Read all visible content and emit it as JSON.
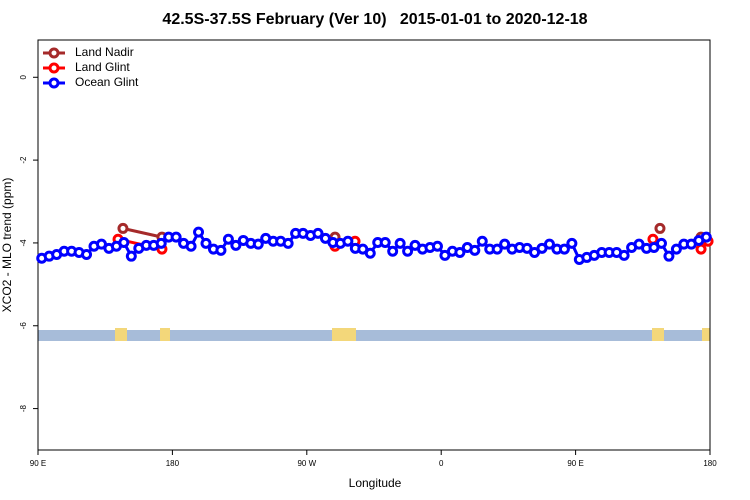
{
  "chart_data": {
    "type": "line",
    "title": "42.5S-37.5S February (Ver 10)   2015-01-01 to 2020-12-18",
    "x_label": "Longitude",
    "y_label": "XCO2 - MLO trend (ppm)",
    "xlim": [
      90,
      540
    ],
    "ylim": [
      -9,
      0.9
    ],
    "xticks": [
      {
        "value": 90,
        "label": "90 E"
      },
      180,
      {
        "value": 270,
        "label": "90 W"
      },
      {
        "value": 360,
        "label": "0"
      },
      {
        "value": 450,
        "label": "90 E"
      },
      {
        "value": 540,
        "label": "180"
      }
    ],
    "yticks": [
      0,
      -2,
      -4,
      -6,
      -8
    ],
    "legend": "top-left",
    "series": [
      {
        "name": "Land Nadir",
        "color": "#a52a2a",
        "x": [
          146.9,
          173,
          null,
          288.9,
          null,
          506.5,
          null,
          534
        ],
        "values": [
          -3.65,
          -3.86,
          null,
          -3.86,
          null,
          -3.65,
          null,
          -3.86
        ]
      },
      {
        "name": "Land Glint",
        "color": "#ff0000",
        "x": [
          143.6,
          173,
          null,
          288.9,
          302.3,
          null,
          501.8,
          null,
          534,
          538.7
        ],
        "values": [
          -3.91,
          -4.15,
          null,
          -4.08,
          -3.96,
          null,
          -3.91,
          null,
          -4.15,
          -3.96
        ]
      },
      {
        "name": "Ocean Glint",
        "color": "#0000ff",
        "x": [
          92.5,
          97.5,
          102.5,
          107.5,
          112.5,
          117.5,
          122.5,
          127.5,
          132.5,
          137.5,
          142.5,
          147.5,
          152.5,
          157.5,
          162.5,
          167.5,
          172.5,
          177.5,
          182.5,
          187.5,
          192.5,
          197.5,
          202.5,
          207.5,
          212.5,
          217.5,
          222.5,
          227.5,
          232.5,
          237.5,
          242.5,
          247.5,
          252.5,
          257.5,
          262.5,
          267.5,
          272.5,
          277.5,
          282.5,
          287.5,
          292.5,
          297.5,
          302.5,
          307.5,
          312.5,
          317.5,
          322.5,
          327.5,
          332.5,
          337.5,
          342.5,
          347.5,
          352.5,
          357.5,
          362.5,
          367.5,
          372.5,
          377.5,
          382.5,
          387.5,
          392.5,
          397.5,
          402.5,
          407.5,
          412.5,
          417.5,
          422.5,
          427.5,
          432.5,
          437.5,
          442.5,
          447.5,
          452.5,
          457.5,
          462.5,
          467.5,
          472.5,
          477.5,
          482.5,
          487.5,
          492.5,
          497.5,
          502.5,
          507.5,
          512.5,
          517.5,
          522.5,
          527.5,
          532.5,
          537.5
        ],
        "values": [
          -4.37,
          -4.32,
          -4.28,
          -4.2,
          -4.2,
          -4.23,
          -4.28,
          -4.08,
          -4.03,
          -4.13,
          -4.08,
          -3.99,
          -4.32,
          -4.13,
          -4.06,
          -4.06,
          -4.01,
          -3.86,
          -3.86,
          -4.01,
          -4.08,
          -3.74,
          -4.01,
          -4.15,
          -4.18,
          -3.91,
          -4.06,
          -3.94,
          -4.01,
          -4.03,
          -3.89,
          -3.96,
          -3.96,
          -4.01,
          -3.77,
          -3.77,
          -3.82,
          -3.77,
          -3.89,
          -3.99,
          -4.01,
          -3.96,
          -4.13,
          -4.15,
          -4.25,
          -3.99,
          -3.99,
          -4.2,
          -4.01,
          -4.2,
          -4.06,
          -4.15,
          -4.11,
          -4.08,
          -4.3,
          -4.2,
          -4.23,
          -4.11,
          -4.18,
          -3.96,
          -4.15,
          -4.15,
          -4.03,
          -4.15,
          -4.11,
          -4.13,
          -4.23,
          -4.13,
          -4.03,
          -4.15,
          -4.15,
          -4.01,
          -4.4,
          -4.35,
          -4.3,
          -4.23,
          -4.23,
          -4.23,
          -4.3,
          -4.11,
          -4.03,
          -4.13,
          -4.11,
          -4.01,
          -4.32,
          -4.15,
          -4.03,
          -4.03,
          -3.94,
          -3.86
        ]
      }
    ]
  }
}
